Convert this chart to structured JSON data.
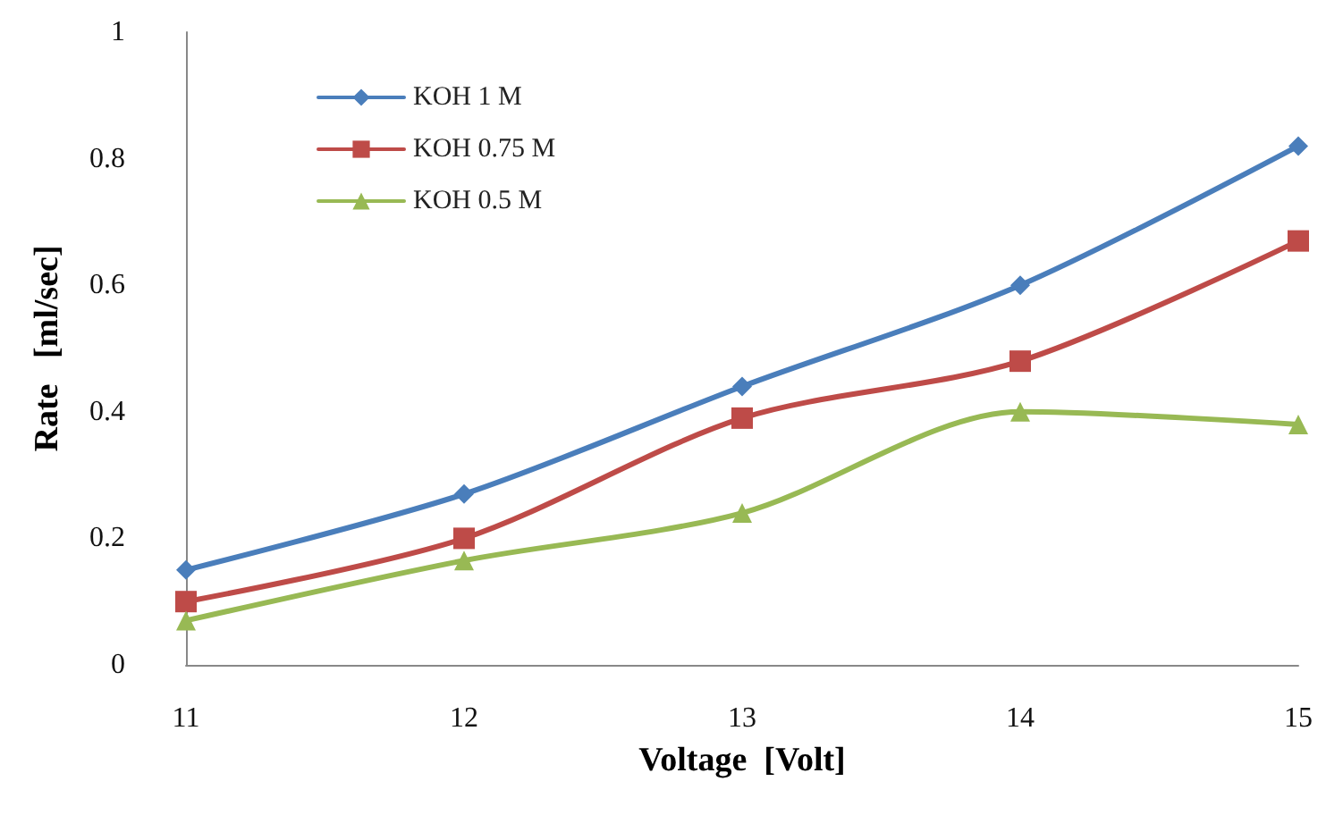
{
  "chart_data": {
    "type": "line",
    "xlabel": "Voltage  [Volt]",
    "ylabel": "Rate   [ml/sec]",
    "categories": [
      "11",
      "12",
      "13",
      "14",
      "15"
    ],
    "series": [
      {
        "name": "KOH 1 M",
        "color": "#4a7ebb",
        "marker": "diamond",
        "values": [
          0.15,
          0.27,
          0.44,
          0.6,
          0.82
        ]
      },
      {
        "name": "KOH 0.75 M",
        "color": "#be4b48",
        "marker": "square",
        "values": [
          0.1,
          0.2,
          0.39,
          0.48,
          0.67
        ]
      },
      {
        "name": "KOH 0.5 M",
        "color": "#98b954",
        "marker": "triangle",
        "values": [
          0.07,
          0.165,
          0.24,
          0.4,
          0.38
        ]
      }
    ],
    "ylim": [
      0,
      1
    ],
    "yticks": [
      0,
      0.2,
      0.4,
      0.6,
      0.8,
      1
    ],
    "grid": false,
    "legend": "top left"
  }
}
